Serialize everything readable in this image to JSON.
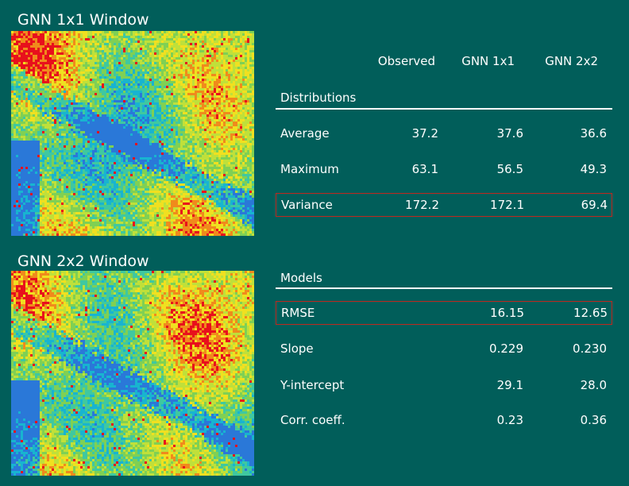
{
  "panels": {
    "top_title": "GNN 1x1 Window",
    "bottom_title": "GNN 2x2 Window"
  },
  "table": {
    "columns": [
      "Observed",
      "GNN 1x1",
      "GNN 2x2"
    ],
    "distributions": {
      "title": "Distributions",
      "rows": [
        {
          "label": "Average",
          "values": [
            "37.2",
            "37.6",
            "36.6"
          ]
        },
        {
          "label": "Maximum",
          "values": [
            "63.1",
            "56.5",
            "49.3"
          ]
        },
        {
          "label": "Variance",
          "values": [
            "172.2",
            "172.1",
            "69.4"
          ]
        }
      ]
    },
    "models": {
      "title": "Models",
      "rows": [
        {
          "label": "RMSE",
          "values": [
            "",
            "16.15",
            "12.65"
          ]
        },
        {
          "label": "Slope",
          "values": [
            "",
            "0.229",
            "0.230"
          ]
        },
        {
          "label": "Y-intercept",
          "values": [
            "",
            "29.1",
            "28.0"
          ]
        },
        {
          "label": "Corr. coeff.",
          "values": [
            "",
            "0.23",
            "0.36"
          ]
        }
      ]
    }
  },
  "colors": {
    "background": "#015e5a",
    "highlight_border": "#c0281e",
    "map_palette": [
      "#e8101c",
      "#f08a1c",
      "#f0e020",
      "#bfe03a",
      "#7fd054",
      "#3fc8a0",
      "#18b4d0",
      "#2a78d8"
    ]
  }
}
